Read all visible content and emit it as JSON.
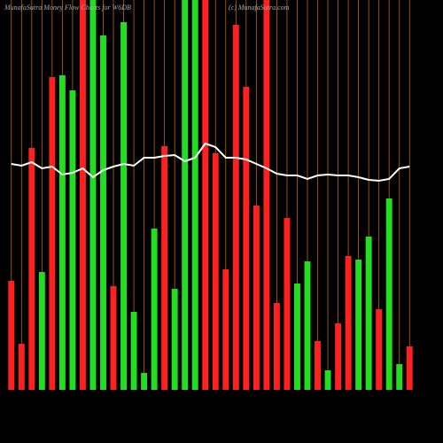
{
  "chart_data": {
    "type": "bar",
    "title": "MunafaSutra  Money Flow  Charts for W6DB",
    "subtitle": "(c) MunafaSutra.com",
    "ylim": [
      0,
      440
    ],
    "grid": true,
    "series": [
      {
        "name": "Money flow",
        "colors": [
          "#ff2020",
          "#ff2020",
          "#ff2020",
          "#22dd22",
          "#ff2020",
          "#22dd22",
          "#22dd22",
          "#ff2020",
          "#22dd22",
          "#22dd22",
          "#ff2020",
          "#22dd22",
          "#22dd22",
          "#22dd22",
          "#22dd22",
          "#ff2020",
          "#22dd22",
          "#22dd22",
          "#22dd22",
          "#ff2020",
          "#ff2020",
          "#ff2020",
          "#ff2020",
          "#ff2020",
          "#ff2020",
          "#ff2020",
          "#ff2020",
          "#ff2020",
          "#22dd22",
          "#22dd22",
          "#ff2020",
          "#22dd22",
          "#ff2020",
          "#ff2020",
          "#22dd22",
          "#22dd22",
          "#ff2020",
          "#22dd22",
          "#22dd22",
          "#ff2020"
        ],
        "values": [
          123,
          52,
          273,
          133,
          353,
          355,
          338,
          440,
          440,
          400,
          117,
          415,
          88,
          19,
          182,
          275,
          114,
          440,
          440,
          440,
          267,
          136,
          412,
          342,
          208,
          440,
          98,
          194,
          120,
          145,
          55,
          22,
          75,
          151,
          147,
          173,
          91,
          216,
          29,
          49
        ]
      },
      {
        "name": "Price",
        "color": "#ffffff",
        "values": [
          255,
          253,
          257,
          250,
          252,
          243,
          245,
          250,
          240,
          248,
          252,
          255,
          253,
          262,
          262,
          264,
          265,
          258,
          262,
          278,
          274,
          262,
          262,
          260,
          255,
          250,
          244,
          242,
          242,
          238,
          242,
          243,
          242,
          242,
          240,
          237,
          236,
          238,
          250,
          252
        ]
      }
    ]
  }
}
